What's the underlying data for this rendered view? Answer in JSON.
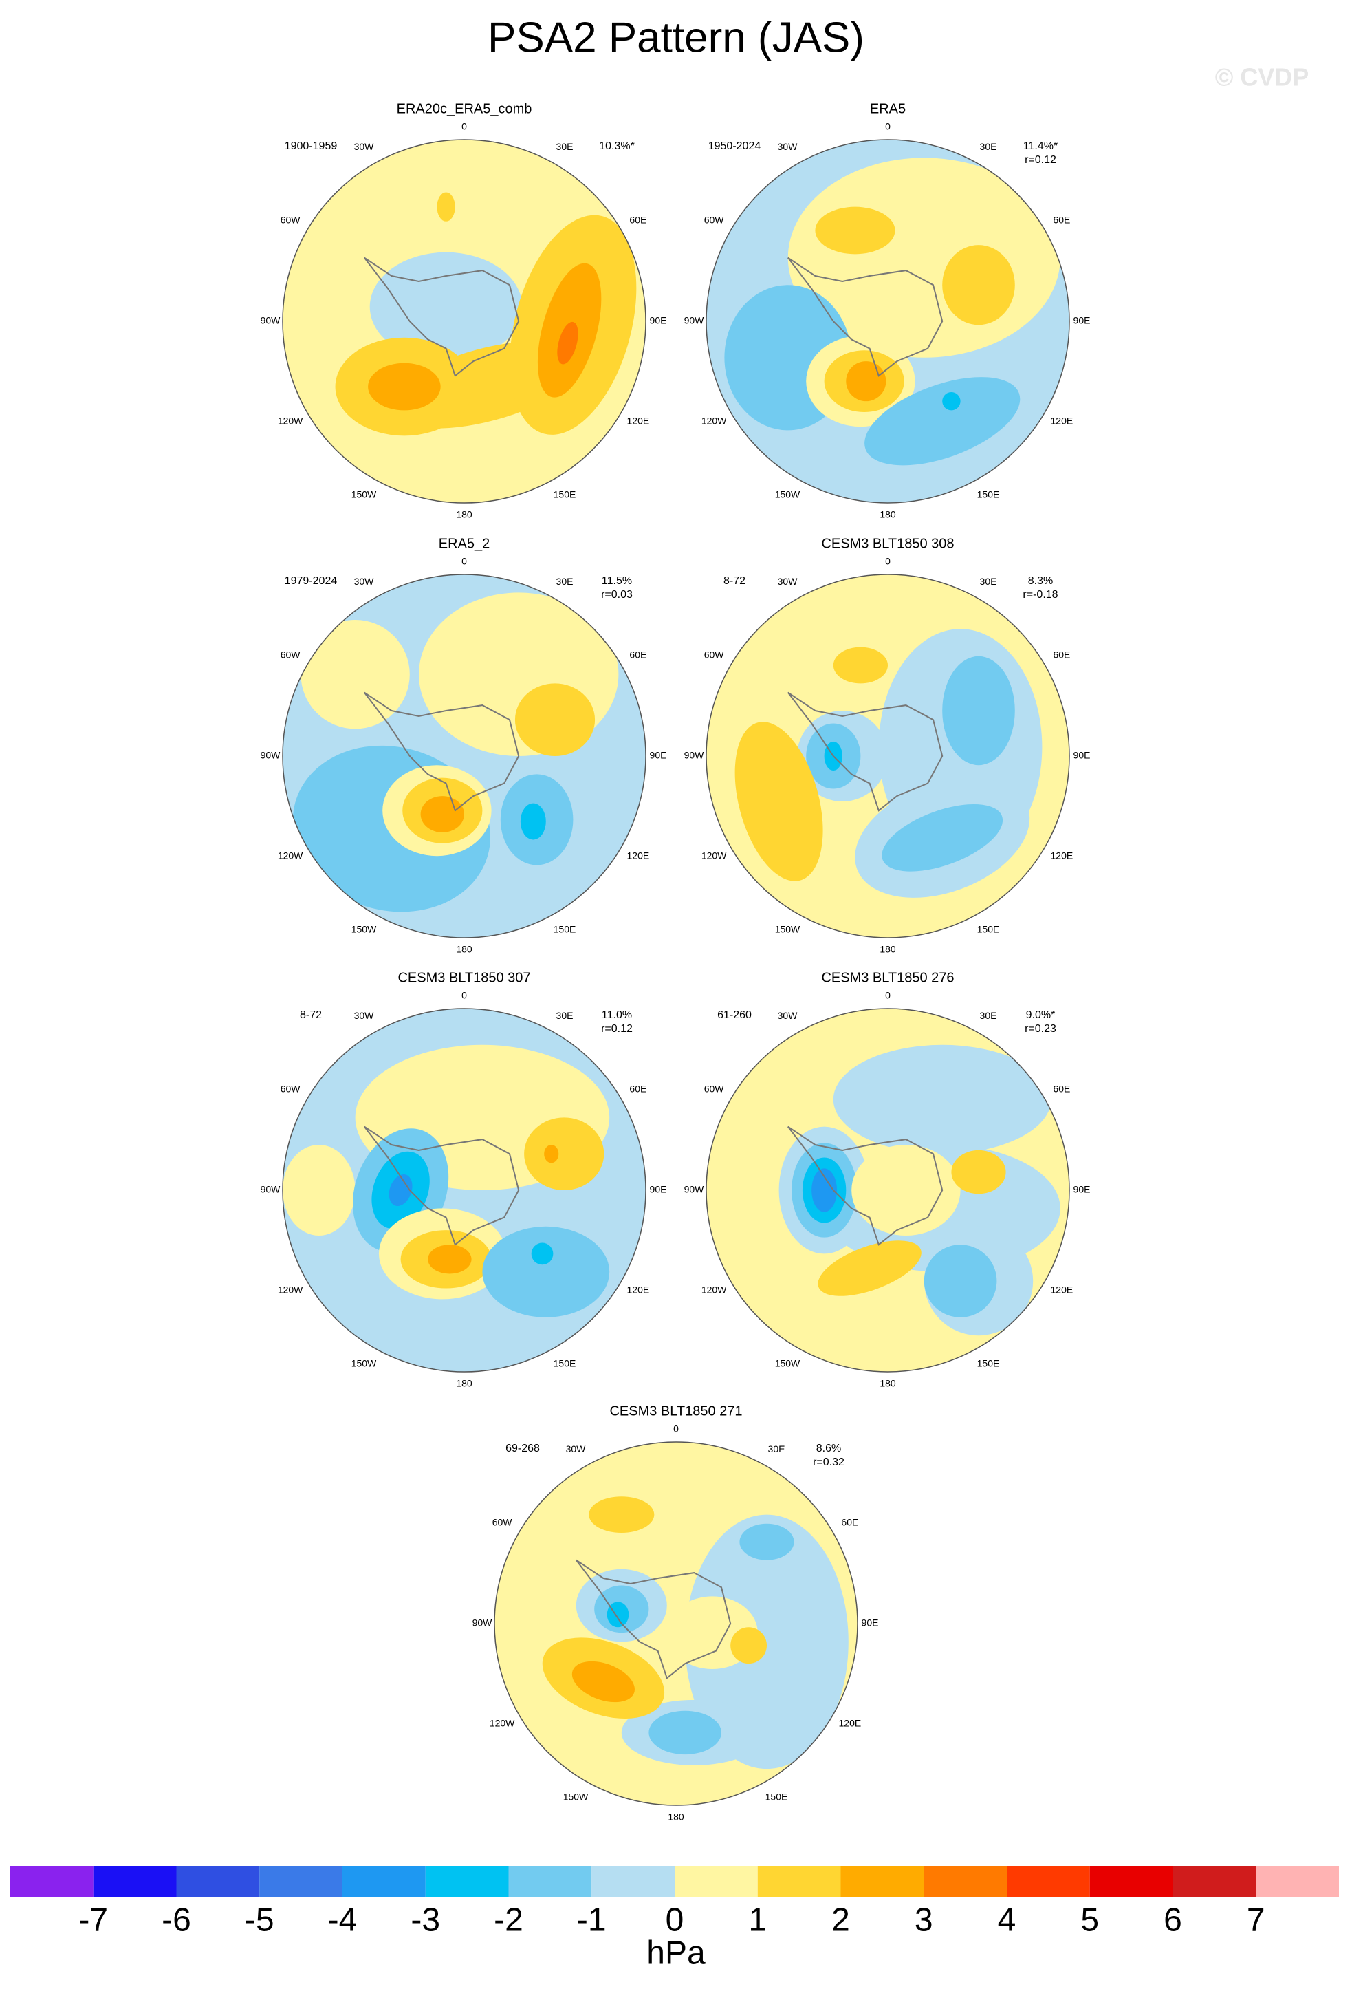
{
  "title": "PSA2 Pattern (JAS)",
  "watermark": "© CVDP",
  "longitude_labels": [
    "0",
    "30E",
    "60E",
    "90E",
    "120E",
    "150E",
    "180",
    "150W",
    "120W",
    "90W",
    "60W",
    "30W"
  ],
  "panels": [
    {
      "title": "ERA20c_ERA5_comb",
      "period": "1900-1959",
      "variance": "10.3%*"
    },
    {
      "title": "ERA5",
      "period": "1950-2024",
      "variance": "11.4%*",
      "correlation": "r=0.12"
    },
    {
      "title": "ERA5_2",
      "period": "1979-2024",
      "variance": "11.5%",
      "correlation": "r=0.03"
    },
    {
      "title": "CESM3 BLT1850 308",
      "period": "8-72",
      "variance": "8.3%",
      "correlation": "r=-0.18"
    },
    {
      "title": "CESM3 BLT1850 307",
      "period": "8-72",
      "variance": "11.0%",
      "correlation": "r=0.12"
    },
    {
      "title": "CESM3 BLT1850 276",
      "period": "61-260",
      "variance": "9.0%*",
      "correlation": "r=0.23"
    },
    {
      "title": "CESM3 BLT1850 271",
      "period": "69-268",
      "variance": "8.6%",
      "correlation": "r=0.32"
    }
  ],
  "colorbar": {
    "levels": [
      -7,
      -6,
      -5,
      -4,
      -3,
      -2,
      -1,
      0,
      1,
      2,
      3,
      4,
      5,
      6,
      7
    ],
    "colors": [
      "#8a22ee",
      "#1a10f5",
      "#2f4fe2",
      "#3a7ae8",
      "#1e98f2",
      "#00c2f2",
      "#72cbf0",
      "#b5def2",
      "#fff6a2",
      "#ffd632",
      "#ffab00",
      "#ff7a00",
      "#ff3a00",
      "#e80000",
      "#d01c1c",
      "#ffb3b3"
    ],
    "label": "hPa"
  }
}
